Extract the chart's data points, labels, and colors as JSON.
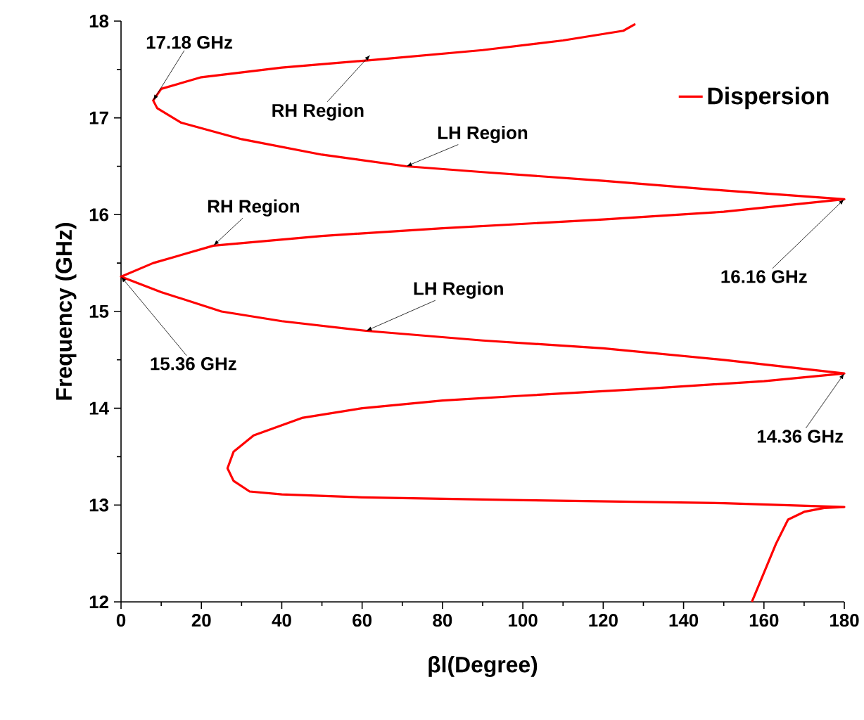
{
  "chart_data": {
    "type": "line",
    "xlabel": "βl(Degree)",
    "ylabel": "Frequency (GHz)",
    "series": [
      {
        "name": "Dispersion",
        "color": "#ff0000",
        "x": [
          157,
          160,
          163,
          166,
          170,
          175,
          180,
          150,
          100,
          60,
          40,
          32,
          28,
          26.5,
          28,
          33,
          45,
          60,
          80,
          100,
          130,
          160,
          180,
          150,
          120,
          90,
          61,
          40,
          25,
          10,
          0,
          8,
          23,
          50,
          80,
          120,
          150,
          180,
          150,
          120,
          90,
          71,
          50,
          30,
          15,
          9,
          8,
          10,
          20,
          40,
          63,
          90,
          110,
          125,
          128
        ],
        "values": [
          12,
          12.3,
          12.6,
          12.85,
          12.93,
          12.97,
          12.98,
          13.02,
          13.05,
          13.08,
          13.11,
          13.14,
          13.25,
          13.38,
          13.55,
          13.72,
          13.9,
          14.0,
          14.08,
          14.13,
          14.2,
          14.28,
          14.36,
          14.5,
          14.62,
          14.7,
          14.8,
          14.9,
          15.0,
          15.2,
          15.36,
          15.5,
          15.68,
          15.78,
          15.86,
          15.95,
          16.03,
          16.16,
          16.25,
          16.35,
          16.44,
          16.5,
          16.62,
          16.78,
          16.95,
          17.1,
          17.18,
          17.3,
          17.42,
          17.52,
          17.6,
          17.7,
          17.8,
          17.9,
          17.97
        ]
      }
    ],
    "xlim": [
      0,
      180
    ],
    "ylim": [
      12,
      18
    ],
    "xticks": [
      0,
      20,
      40,
      60,
      80,
      100,
      120,
      140,
      160,
      180
    ],
    "yticks": [
      12,
      13,
      14,
      15,
      16,
      17,
      18
    ],
    "legend": "top right",
    "grid": false,
    "marker": "none",
    "line_style": "solid",
    "annotations": [
      {
        "text": "17.18 GHz",
        "x": 8,
        "y": 17.18
      },
      {
        "text": "RH Region",
        "x": 62,
        "y": 17.65
      },
      {
        "text": "LH Region",
        "x": 71,
        "y": 16.5
      },
      {
        "text": "RH Region",
        "x": 23,
        "y": 15.68
      },
      {
        "text": "LH Region",
        "x": 61,
        "y": 14.8
      },
      {
        "text": "15.36 GHz",
        "x": 0,
        "y": 15.36
      },
      {
        "text": "16.16 GHz",
        "x": 180,
        "y": 16.16
      },
      {
        "text": "14.36 GHz",
        "x": 180,
        "y": 14.36
      }
    ]
  }
}
